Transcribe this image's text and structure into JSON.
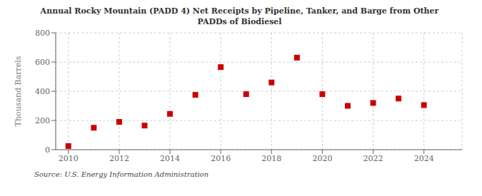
{
  "chart_data": {
    "type": "scatter",
    "title": "Annual Rocky Mountain (PADD 4) Net Receipts by Pipeline, Tanker, and Barge from Other\nPADDs of Biodiesel",
    "y_label": "Thousand Barrels",
    "annotation": "Source: U.S. Energy Information Administration",
    "x": [
      2010,
      2011,
      2012,
      2013,
      2014,
      2015,
      2016,
      2017,
      2018,
      2019,
      2020,
      2021,
      2022,
      2023,
      2024
    ],
    "values": [
      25,
      150,
      190,
      165,
      245,
      375,
      565,
      380,
      460,
      630,
      380,
      300,
      320,
      350,
      305
    ],
    "color": "#cc0000",
    "marker": "square",
    "xlim": [
      2009.5,
      2025.5
    ],
    "xticks": [
      2010,
      2012,
      2014,
      2016,
      2018,
      2020,
      2022,
      2024
    ],
    "ylim": [
      0,
      800
    ],
    "yticks": [
      0,
      200,
      400,
      600,
      800
    ],
    "grid": true
  }
}
